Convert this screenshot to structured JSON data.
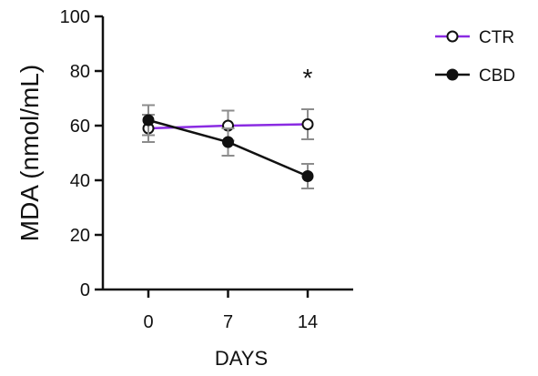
{
  "chart_data": {
    "type": "line",
    "title": "",
    "xlabel": "DAYS",
    "ylabel": "MDA (nmol/mL)",
    "x": [
      0,
      7,
      14
    ],
    "xlim": [
      -4,
      18
    ],
    "ylim": [
      0,
      100
    ],
    "yticks": [
      0,
      20,
      40,
      60,
      80,
      100
    ],
    "grid": false,
    "legend_position": "top-right",
    "series": [
      {
        "name": "CTR",
        "values": [
          59,
          60,
          60.5
        ],
        "error": [
          5,
          5.5,
          5.5
        ],
        "color": "#8a2be2",
        "marker": "open-circle"
      },
      {
        "name": "CBD",
        "values": [
          62,
          54,
          41.5
        ],
        "error": [
          5.5,
          5,
          4.5
        ],
        "color": "#111111",
        "marker": "filled-circle"
      }
    ],
    "annotations": [
      {
        "text": "*",
        "x": 14,
        "y": 79
      }
    ]
  }
}
